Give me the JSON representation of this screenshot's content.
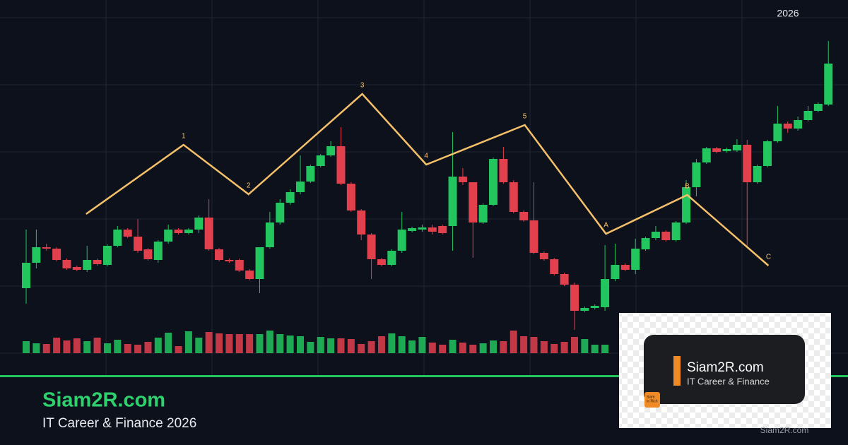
{
  "chart_data": {
    "type": "candlestick",
    "top_label": "2026",
    "ylim": [
      0,
      500
    ],
    "up_color": "#22c55e",
    "down_color": "#e3404d",
    "open": [
      112,
      148,
      170,
      168,
      152,
      142,
      138,
      152,
      145,
      172,
      195,
      185,
      167,
      152,
      178,
      195,
      190,
      195,
      212,
      167,
      152,
      152,
      137,
      125,
      170,
      205,
      233,
      248,
      263,
      285,
      300,
      313,
      260,
      222,
      188,
      153,
      145,
      165,
      193,
      195,
      198,
      200,
      200,
      270,
      262,
      205,
      230,
      295,
      262,
      220,
      208,
      162,
      153,
      132,
      117,
      80,
      84,
      85,
      125,
      145,
      138,
      167,
      183,
      192,
      180,
      205,
      255,
      290,
      310,
      306,
      307,
      315,
      262,
      285,
      320,
      345,
      338,
      350,
      363,
      372
    ],
    "high": [
      195,
      195,
      175,
      170,
      154,
      144,
      172,
      154,
      174,
      200,
      197,
      210,
      169,
      180,
      202,
      197,
      197,
      215,
      238,
      169,
      154,
      154,
      139,
      170,
      220,
      238,
      252,
      300,
      287,
      302,
      320,
      340,
      262,
      224,
      190,
      155,
      167,
      220,
      199,
      202,
      202,
      202,
      333,
      282,
      262,
      232,
      297,
      312,
      265,
      222,
      262,
      164,
      155,
      134,
      120,
      86,
      89,
      173,
      175,
      147,
      182,
      185,
      200,
      194,
      207,
      265,
      295,
      312,
      312,
      311,
      323,
      322,
      287,
      322,
      370,
      348,
      355,
      370,
      375,
      462
    ],
    "low": [
      90,
      140,
      165,
      150,
      138,
      136,
      135,
      144,
      143,
      170,
      183,
      162,
      151,
      148,
      175,
      188,
      188,
      190,
      165,
      150,
      148,
      135,
      123,
      105,
      168,
      202,
      230,
      245,
      261,
      283,
      298,
      258,
      220,
      180,
      125,
      143,
      143,
      162,
      191,
      192,
      188,
      188,
      165,
      258,
      155,
      203,
      228,
      260,
      218,
      206,
      160,
      151,
      130,
      115,
      53,
      78,
      82,
      80,
      122,
      136,
      132,
      165,
      180,
      178,
      178,
      203,
      242,
      288,
      303,
      304,
      305,
      170,
      260,
      283,
      318,
      332,
      335,
      348,
      361,
      370
    ],
    "close": [
      148,
      170,
      168,
      152,
      140,
      138,
      152,
      146,
      172,
      195,
      185,
      165,
      153,
      178,
      195,
      190,
      195,
      212,
      167,
      152,
      150,
      137,
      125,
      170,
      205,
      233,
      248,
      263,
      285,
      300,
      313,
      260,
      222,
      188,
      153,
      145,
      165,
      195,
      197,
      198,
      192,
      190,
      270,
      262,
      205,
      230,
      295,
      262,
      220,
      208,
      162,
      153,
      132,
      117,
      80,
      84,
      87,
      125,
      145,
      138,
      168,
      183,
      192,
      180,
      205,
      255,
      290,
      310,
      305,
      309,
      315,
      262,
      285,
      320,
      345,
      338,
      350,
      363,
      373,
      430
    ],
    "volume": [
      17,
      14,
      13,
      22,
      18,
      21,
      17,
      22,
      14,
      19,
      13,
      12,
      16,
      22,
      29,
      10,
      31,
      22,
      30,
      28,
      27,
      27,
      27,
      27,
      32,
      27,
      25,
      24,
      16,
      23,
      21,
      21,
      20,
      13,
      17,
      24,
      28,
      24,
      18,
      23,
      15,
      12,
      19,
      15,
      12,
      14,
      18,
      17,
      32,
      24,
      23,
      17,
      13,
      16,
      23,
      20,
      12,
      12,
      null,
      null,
      null,
      null,
      null,
      null,
      null,
      null,
      null,
      null,
      null,
      null,
      null,
      null,
      null,
      null,
      null,
      null,
      null,
      null,
      null,
      null
    ],
    "volume_ylim": [
      0,
      100
    ],
    "wave": {
      "color": "#f5c06a",
      "labels": [
        "1",
        "2",
        "3",
        "4",
        "5",
        "A",
        "B",
        "C"
      ],
      "x": [
        5.9,
        15.5,
        21.9,
        33.1,
        39.4,
        49.1,
        57.1,
        65.1,
        73.1
      ],
      "values": [
        217,
        315,
        245,
        387,
        287,
        343,
        189,
        244,
        144
      ]
    }
  },
  "branding": {
    "title": "Siam2R.com",
    "subtitle": "IT Career & Finance 2026"
  },
  "overlay": {
    "title": "Siam2R.com",
    "subtitle": "IT Career & Finance",
    "badge": [
      "Siam",
      "to Rich"
    ],
    "watermark": "Siam2R.com"
  }
}
